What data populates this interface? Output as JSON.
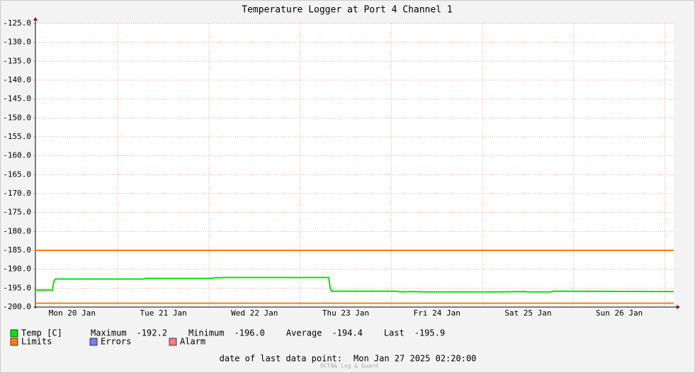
{
  "chart_data": {
    "type": "line",
    "title": "Temperature Logger at Port 4 Channel 1",
    "xlim": [
      20.097,
      27.097
    ],
    "ylim": [
      -200,
      -125
    ],
    "xticks": [
      {
        "value": 20.5,
        "label": "Mon 20 Jan"
      },
      {
        "value": 21.5,
        "label": "Tue 21 Jan"
      },
      {
        "value": 22.5,
        "label": "Wed 22 Jan"
      },
      {
        "value": 23.5,
        "label": "Thu 23 Jan"
      },
      {
        "value": 24.5,
        "label": "Fri 24 Jan"
      },
      {
        "value": 25.5,
        "label": "Sat 25 Jan"
      },
      {
        "value": 26.5,
        "label": "Sun 26 Jan"
      }
    ],
    "xgrid": [
      21,
      22,
      23,
      24,
      25,
      26,
      27
    ],
    "yticks": [
      {
        "value": -125,
        "label": "-125.0"
      },
      {
        "value": -130,
        "label": "-130.0"
      },
      {
        "value": -135,
        "label": "-135.0"
      },
      {
        "value": -140,
        "label": "-140.0"
      },
      {
        "value": -145,
        "label": "-145.0"
      },
      {
        "value": -150,
        "label": "-150.0"
      },
      {
        "value": -155,
        "label": "-155.0"
      },
      {
        "value": -160,
        "label": "-160.0"
      },
      {
        "value": -165,
        "label": "-165.0"
      },
      {
        "value": -170,
        "label": "-170.0"
      },
      {
        "value": -175,
        "label": "-175.0"
      },
      {
        "value": -180,
        "label": "-180.0"
      },
      {
        "value": -185,
        "label": "-185.0"
      },
      {
        "value": -190,
        "label": "-190.0"
      },
      {
        "value": -195,
        "label": "-195.0"
      },
      {
        "value": -200,
        "label": "-200.0"
      }
    ],
    "grid": true,
    "series": [
      {
        "name": "Temp [C]",
        "color": "#00e600",
        "x": [
          20.097,
          20.283,
          20.299,
          20.315,
          21.286,
          21.301,
          22.04,
          22.078,
          22.117,
          22.133,
          23.314,
          23.329,
          23.345,
          24.06,
          24.099,
          24.215,
          24.37,
          25.147,
          25.458,
          25.497,
          25.753,
          25.769,
          27.097
        ],
        "values": [
          -195.5,
          -195.5,
          -193.2,
          -192.6,
          -192.6,
          -192.4,
          -192.4,
          -192.2,
          -192.3,
          -192.2,
          -192.2,
          -195.0,
          -195.8,
          -195.8,
          -196.0,
          -195.9,
          -196.0,
          -196.0,
          -195.9,
          -196.0,
          -196.0,
          -195.8,
          -195.9
        ]
      }
    ],
    "limits": {
      "name": "Limits",
      "color": "#ff7f00",
      "values": [
        -185,
        -199
      ]
    },
    "extra_legend": [
      {
        "name": "Errors",
        "color": "#7b7bff"
      },
      {
        "name": "Alarm",
        "color": "#ff7b7b"
      }
    ],
    "stats": [
      {
        "label": "Maximum",
        "value": "-192.2"
      },
      {
        "label": "Minimum",
        "value": "-196.0"
      },
      {
        "label": "Average",
        "value": "-194.4"
      },
      {
        "label": "Last",
        "value": "-195.9"
      }
    ],
    "footer": {
      "label": "date of last data point:",
      "value": "Mon Jan 27 2025 02:20:00"
    },
    "watermark": "OCTA& Log & Guard"
  }
}
